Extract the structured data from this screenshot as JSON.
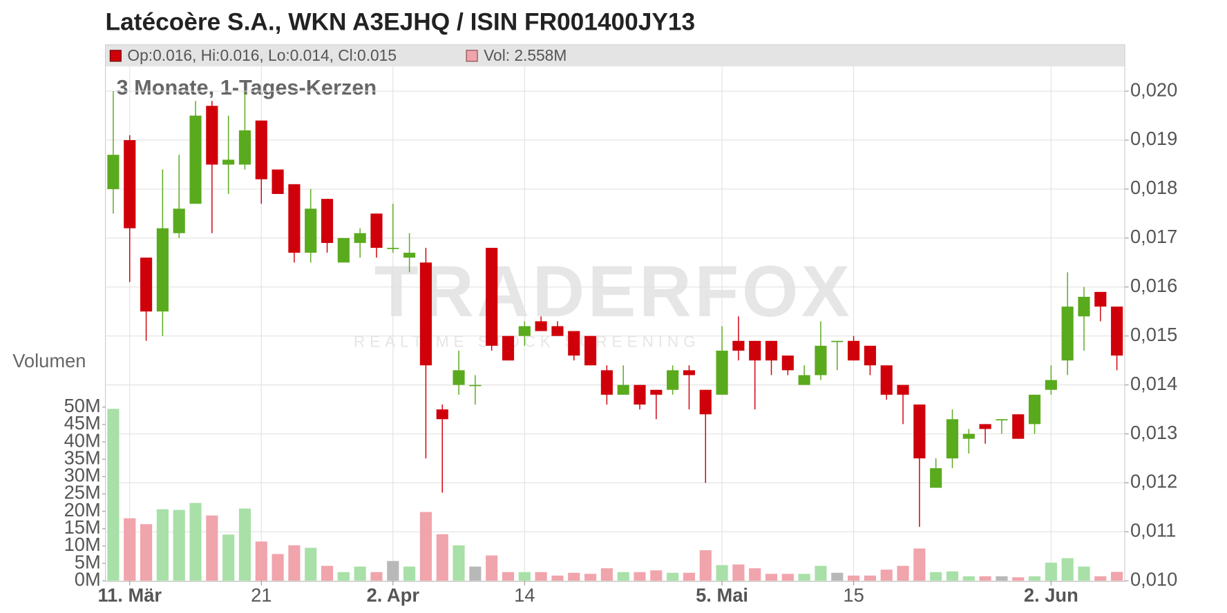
{
  "chart_data": {
    "type": "candlestick",
    "title": "Latécoère S.A., WKN A3EJHQ / ISIN FR001400JY13",
    "legend_price": "Op:0.016, Hi:0.016, Lo:0.014, Cl:0.015",
    "legend_volume": "Vol: 2.558M",
    "subtitle": "3 Monate, 1-Tages-Kerzen",
    "volume_label": "Volumen",
    "watermark": "TRADERFOX",
    "watermark_sub": "REALTIME STOCK SCREENING",
    "up_color": "#5aaa1e",
    "down_color": "#d0000a",
    "volume_up_color": "#a8e0a8",
    "volume_down_color": "#f0a4ac",
    "volume_flat_color": "#b8b8b8",
    "categories": [
      null,
      "11. Mär",
      null,
      null,
      null,
      null,
      null,
      null,
      null,
      "21",
      null,
      null,
      null,
      null,
      null,
      null,
      null,
      "2. Apr",
      null,
      null,
      null,
      null,
      null,
      null,
      null,
      "14",
      null,
      null,
      null,
      null,
      null,
      null,
      null,
      null,
      null,
      null,
      null,
      "5. Mai",
      null,
      null,
      null,
      null,
      null,
      null,
      null,
      "15",
      null,
      null,
      null,
      null,
      null,
      null,
      null,
      null,
      null,
      null,
      null,
      "2. Jun",
      null,
      null,
      null,
      null
    ],
    "open": [
      0.018,
      0.019,
      0.0166,
      0.0155,
      0.0171,
      0.0177,
      0.0197,
      0.0185,
      0.0185,
      0.0194,
      0.0184,
      0.0181,
      0.0167,
      0.0178,
      0.0165,
      0.0169,
      0.0175,
      0.0168,
      0.0166,
      0.0165,
      0.0135,
      0.014,
      0.014,
      0.0168,
      0.015,
      0.015,
      0.0153,
      0.0152,
      0.0151,
      0.015,
      0.0143,
      0.0138,
      0.014,
      0.0139,
      0.0139,
      0.0143,
      0.0139,
      0.0138,
      0.0149,
      0.0149,
      0.0149,
      0.0146,
      0.014,
      0.0142,
      0.0149,
      0.0149,
      0.0148,
      0.0144,
      0.014,
      0.0136,
      0.0119,
      0.0125,
      0.0129,
      0.0132,
      0.0133,
      0.0134,
      0.0132,
      0.0139,
      0.0145,
      0.0154,
      0.0159,
      0.0156
    ],
    "high": [
      0.02,
      0.0191,
      0.0166,
      0.0184,
      0.0187,
      0.0198,
      0.0198,
      0.0195,
      0.02,
      0.0194,
      0.0184,
      0.0181,
      0.018,
      0.0178,
      0.017,
      0.0172,
      0.0175,
      0.0177,
      0.0171,
      0.0168,
      0.0136,
      0.0147,
      0.0142,
      0.0168,
      0.015,
      0.0153,
      0.0154,
      0.0153,
      0.0151,
      0.015,
      0.0144,
      0.0144,
      0.014,
      0.0139,
      0.0144,
      0.0144,
      0.0139,
      0.0152,
      0.0154,
      0.0149,
      0.0149,
      0.0146,
      0.0144,
      0.0153,
      0.0149,
      0.015,
      0.0148,
      0.0144,
      0.014,
      0.0136,
      0.0125,
      0.0135,
      0.0131,
      0.0132,
      0.0133,
      0.0134,
      0.0138,
      0.0144,
      0.0163,
      0.016,
      0.0159,
      0.0156
    ],
    "low": [
      0.0175,
      0.0161,
      0.0149,
      0.015,
      0.017,
      0.0177,
      0.0171,
      0.0179,
      0.0184,
      0.0177,
      0.0179,
      0.0165,
      0.0165,
      0.0167,
      0.0165,
      0.0166,
      0.0166,
      0.0167,
      0.0163,
      0.0125,
      0.0118,
      0.0138,
      0.0136,
      0.0147,
      0.0145,
      0.0148,
      0.0151,
      0.015,
      0.0145,
      0.0144,
      0.0136,
      0.0138,
      0.0135,
      0.0133,
      0.0138,
      0.0135,
      0.012,
      0.0138,
      0.0145,
      0.0135,
      0.0142,
      0.0142,
      0.014,
      0.0141,
      0.0143,
      0.0145,
      0.0142,
      0.0137,
      0.0132,
      0.0111,
      0.0119,
      0.0123,
      0.0126,
      0.0128,
      0.013,
      0.0129,
      0.013,
      0.0138,
      0.0142,
      0.0147,
      0.0153,
      0.0143
    ],
    "close": [
      0.0187,
      0.0172,
      0.0155,
      0.0172,
      0.0176,
      0.0195,
      0.0185,
      0.0186,
      0.0192,
      0.0182,
      0.0179,
      0.0167,
      0.0176,
      0.0169,
      0.017,
      0.0171,
      0.0168,
      0.0168,
      0.0167,
      0.0144,
      0.0133,
      0.0143,
      0.014,
      0.0148,
      0.0145,
      0.0152,
      0.0151,
      0.015,
      0.0146,
      0.0144,
      0.0138,
      0.014,
      0.0136,
      0.0138,
      0.0143,
      0.0142,
      0.0134,
      0.0147,
      0.0147,
      0.0145,
      0.0145,
      0.0143,
      0.0142,
      0.0148,
      0.0149,
      0.0145,
      0.0144,
      0.0138,
      0.0138,
      0.0125,
      0.0123,
      0.0133,
      0.013,
      0.0131,
      0.0133,
      0.0129,
      0.0138,
      0.0141,
      0.0156,
      0.0158,
      0.0156,
      0.0146
    ],
    "volume": [
      49.5,
      18,
      16.3,
      20.6,
      20.4,
      22.4,
      18.8,
      13.3,
      20.8,
      11.3,
      7.7,
      10.2,
      9.5,
      4.3,
      2.5,
      4.1,
      2.5,
      5.7,
      4.1,
      19.8,
      13.4,
      10.2,
      4.1,
      7.3,
      2.5,
      2.5,
      2.5,
      1.5,
      2.3,
      2,
      3.6,
      2.5,
      2.5,
      3,
      2.3,
      2.3,
      8.8,
      4.5,
      4.7,
      3.6,
      2,
      2,
      2,
      4.3,
      2.3,
      1.5,
      1.5,
      3.2,
      4.3,
      9.3,
      2.5,
      2.7,
      1.3,
      1.3,
      1.3,
      1,
      1.3,
      5.2,
      6.5,
      4.1,
      1.3,
      2.558
    ],
    "ylim": [
      0.01,
      0.02
    ],
    "yticks": [
      {
        "value": 0.01,
        "label": "0,010"
      },
      {
        "value": 0.011,
        "label": "0,011"
      },
      {
        "value": 0.012,
        "label": "0,012"
      },
      {
        "value": 0.013,
        "label": "0,013"
      },
      {
        "value": 0.014,
        "label": "0,014"
      },
      {
        "value": 0.015,
        "label": "0,015"
      },
      {
        "value": 0.016,
        "label": "0,016"
      },
      {
        "value": 0.017,
        "label": "0,017"
      },
      {
        "value": 0.018,
        "label": "0,018"
      },
      {
        "value": 0.019,
        "label": "0,019"
      },
      {
        "value": 0.02,
        "label": "0,020"
      }
    ],
    "y2lim": [
      0,
      50
    ],
    "y2ticks": [
      {
        "value": 0,
        "label": "0M"
      },
      {
        "value": 5,
        "label": "5M"
      },
      {
        "value": 10,
        "label": "10M"
      },
      {
        "value": 15,
        "label": "15M"
      },
      {
        "value": 20,
        "label": "20M"
      },
      {
        "value": 25,
        "label": "25M"
      },
      {
        "value": 30,
        "label": "30M"
      },
      {
        "value": 35,
        "label": "35M"
      },
      {
        "value": 40,
        "label": "40M"
      },
      {
        "value": 45,
        "label": "45M"
      },
      {
        "value": 50,
        "label": "50M"
      }
    ],
    "grid": true
  }
}
